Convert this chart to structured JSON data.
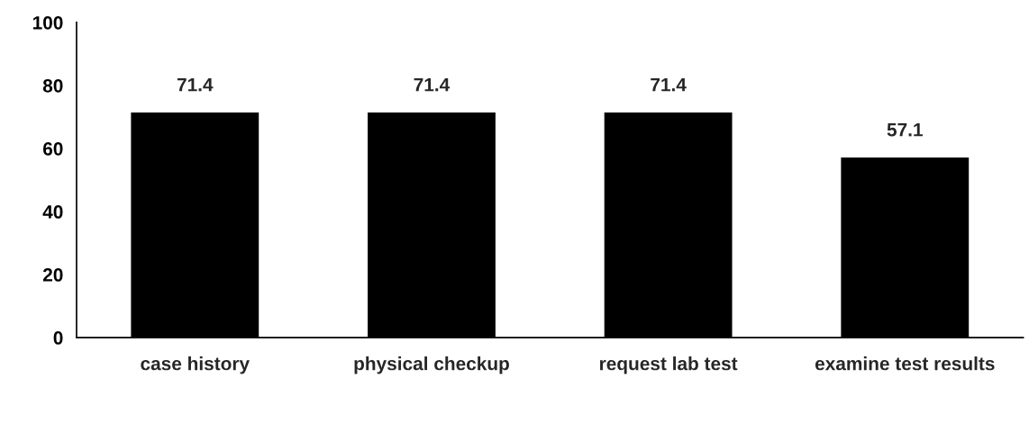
{
  "chart_data": {
    "type": "bar",
    "categories": [
      "case history",
      "physical checkup",
      "request lab test",
      "examine test results"
    ],
    "values": [
      71.4,
      71.4,
      71.4,
      57.1
    ],
    "color": "#000000",
    "ylim": [
      0,
      100
    ],
    "yticks": [
      0,
      20,
      40,
      60,
      80,
      100
    ],
    "data_labels": true,
    "grid": false,
    "legend": false
  }
}
